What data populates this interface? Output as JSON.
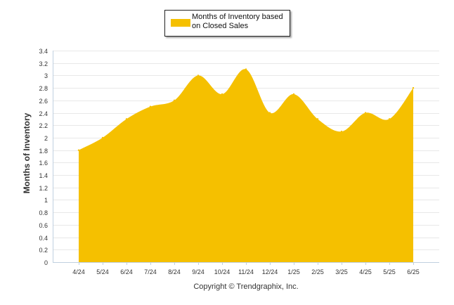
{
  "colors": {
    "area": "#F5C000",
    "grid": "#E8E8E8",
    "axis": "#C0D0E0",
    "text": "#333333"
  },
  "legend": {
    "label": "Months of Inventory based on Closed Sales"
  },
  "copyright": "Copyright © Trendgraphix, Inc.",
  "chart_data": {
    "type": "area",
    "ylabel": "Months of Inventory",
    "xlabel": "",
    "ylim": [
      0,
      3.4
    ],
    "ytick_step": 0.2,
    "yticks": [
      "0",
      "0.2",
      "0.4",
      "0.6",
      "0.8",
      "1",
      "1.2",
      "1.4",
      "1.6",
      "1.8",
      "2",
      "2.2",
      "2.4",
      "2.6",
      "2.8",
      "3",
      "3.2",
      "3.4"
    ],
    "grid": true,
    "legend_position": "top",
    "categories": [
      "4/24",
      "5/24",
      "6/24",
      "7/24",
      "8/24",
      "9/24",
      "10/24",
      "11/24",
      "12/24",
      "1/25",
      "2/25",
      "3/25",
      "4/25",
      "5/25",
      "6/25"
    ],
    "series": [
      {
        "name": "Months of Inventory based on Closed Sales",
        "values": [
          1.8,
          2.0,
          2.3,
          2.5,
          2.6,
          3.0,
          2.7,
          3.1,
          2.4,
          2.7,
          2.3,
          2.1,
          2.4,
          2.3,
          2.8
        ]
      }
    ]
  }
}
